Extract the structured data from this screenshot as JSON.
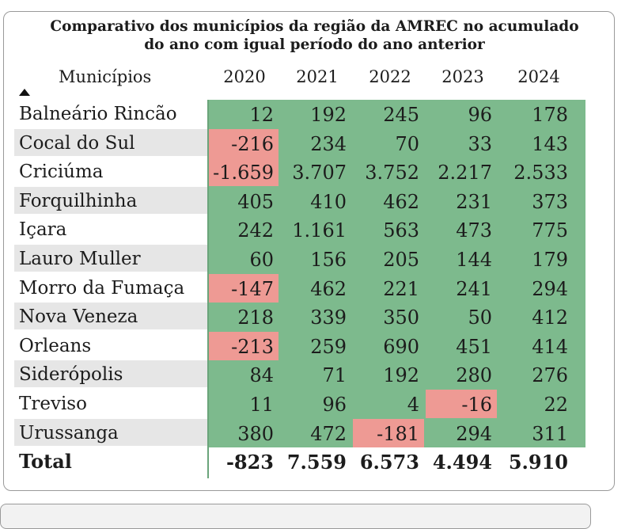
{
  "title_line1": "Comparativo dos municípios da região da AMREC no acumulado",
  "title_line2": "do ano com igual período do ano anterior",
  "header": {
    "municipios": "Municípios",
    "years": [
      "2020",
      "2021",
      "2022",
      "2023",
      "2024"
    ]
  },
  "sort": {
    "column": "Municípios",
    "direction": "ascending",
    "icon": "sort-ascending-icon"
  },
  "colors": {
    "positive": "#7dba8d",
    "negative": "#ee9a94",
    "alt_row": "#e6e6e6"
  },
  "rows": [
    {
      "name": "Balneário Rincão",
      "values": [
        "12",
        "192",
        "245",
        "96",
        "178"
      ]
    },
    {
      "name": "Cocal do Sul",
      "values": [
        "-216",
        "234",
        "70",
        "33",
        "143"
      ]
    },
    {
      "name": "Criciúma",
      "values": [
        "-1.659",
        "3.707",
        "3.752",
        "2.217",
        "2.533"
      ]
    },
    {
      "name": "Forquilhinha",
      "values": [
        "405",
        "410",
        "462",
        "231",
        "373"
      ]
    },
    {
      "name": "Içara",
      "values": [
        "242",
        "1.161",
        "563",
        "473",
        "775"
      ]
    },
    {
      "name": "Lauro Muller",
      "values": [
        "60",
        "156",
        "205",
        "144",
        "179"
      ]
    },
    {
      "name": "Morro da Fumaça",
      "values": [
        "-147",
        "462",
        "221",
        "241",
        "294"
      ]
    },
    {
      "name": "Nova Veneza",
      "values": [
        "218",
        "339",
        "350",
        "50",
        "412"
      ]
    },
    {
      "name": "Orleans",
      "values": [
        "-213",
        "259",
        "690",
        "451",
        "414"
      ]
    },
    {
      "name": "Siderópolis",
      "values": [
        "84",
        "71",
        "192",
        "280",
        "276"
      ]
    },
    {
      "name": "Treviso",
      "values": [
        "11",
        "96",
        "4",
        "-16",
        "22"
      ]
    },
    {
      "name": "Urussanga",
      "values": [
        "380",
        "472",
        "-181",
        "294",
        "311"
      ]
    }
  ],
  "total": {
    "name": "Total",
    "values": [
      "-823",
      "7.559",
      "6.573",
      "4.494",
      "5.910"
    ]
  }
}
